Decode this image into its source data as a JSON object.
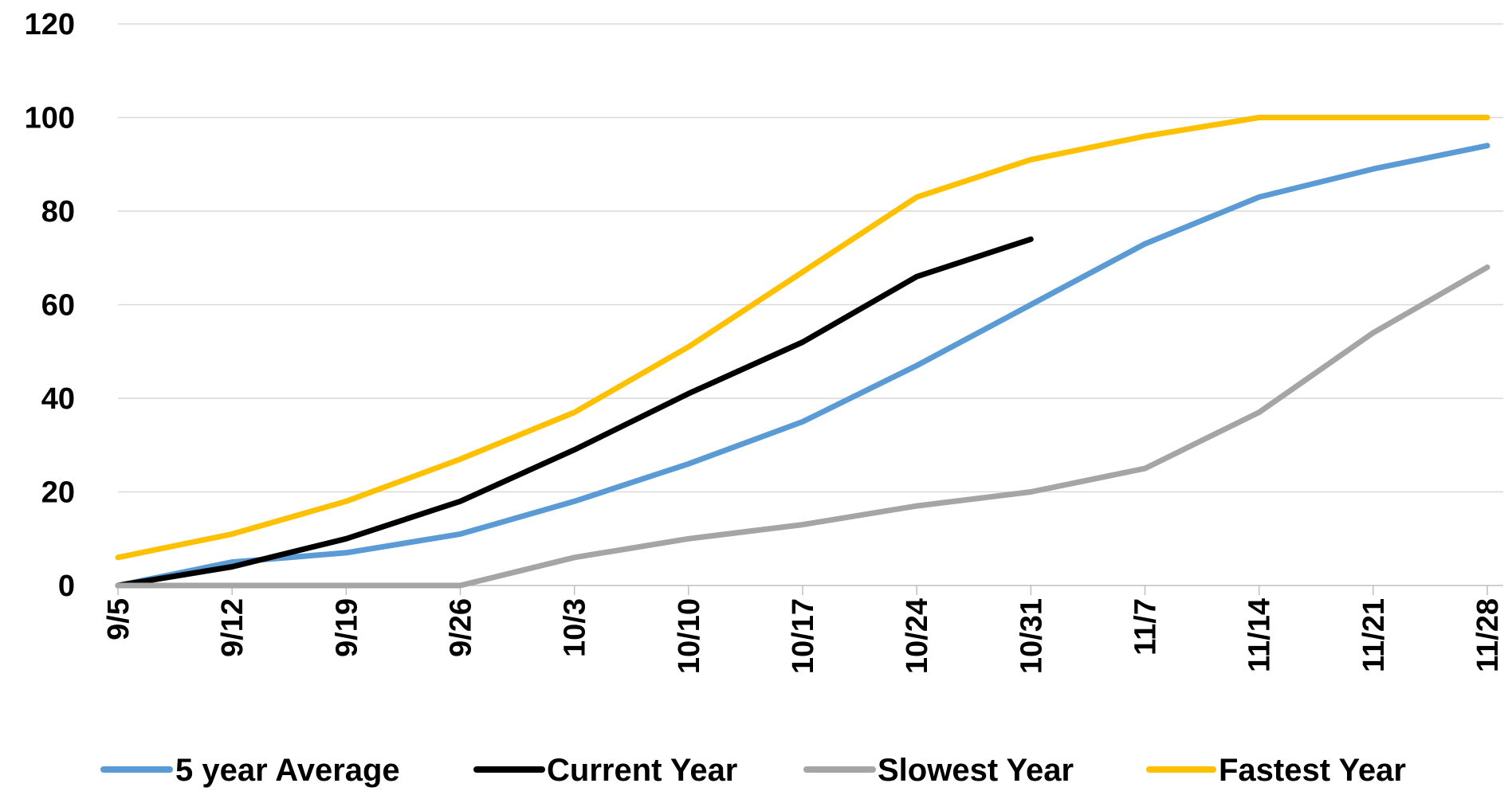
{
  "chart_data": {
    "type": "line",
    "x": [
      "9/5",
      "9/12",
      "9/19",
      "9/26",
      "10/3",
      "10/10",
      "10/17",
      "10/24",
      "10/31",
      "11/7",
      "11/14",
      "11/21",
      "11/28"
    ],
    "ylim": [
      0,
      120
    ],
    "yticks": [
      0,
      20,
      40,
      60,
      80,
      100,
      120
    ],
    "grid": true,
    "legend": "bottom",
    "series": [
      {
        "name": "5 year Average",
        "color": "#5B9BD5",
        "values": [
          0,
          5,
          7,
          11,
          18,
          26,
          35,
          47,
          60,
          73,
          83,
          89,
          94
        ]
      },
      {
        "name": "Current Year",
        "color": "#000000",
        "values": [
          0,
          4,
          10,
          18,
          29,
          41,
          52,
          66,
          74,
          null,
          null,
          null,
          null
        ]
      },
      {
        "name": "Slowest Year",
        "color": "#A5A5A5",
        "values": [
          0,
          0,
          0,
          0,
          6,
          10,
          13,
          17,
          20,
          25,
          37,
          54,
          68
        ]
      },
      {
        "name": "Fastest Year",
        "color": "#FFC000",
        "values": [
          6,
          11,
          18,
          27,
          37,
          51,
          67,
          83,
          91,
          96,
          100,
          100,
          100
        ]
      }
    ]
  }
}
